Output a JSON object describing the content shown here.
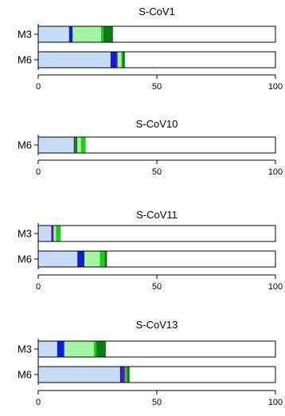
{
  "colors": {
    "light_blue": "#c6dbf6",
    "blue": "#0a1fd8",
    "purple": "#6a0f9c",
    "light_green": "#a3f5a3",
    "green": "#19d019",
    "dark_green": "#0e7a14"
  },
  "chart_data": [
    {
      "type": "bar",
      "orientation": "horizontal",
      "stacked": true,
      "title": "S-CoV1",
      "categories": [
        "M3",
        "M6"
      ],
      "xlim": [
        0,
        100
      ],
      "xticks": [
        "0",
        "50",
        "100"
      ],
      "segments": [
        [
          {
            "value": 13,
            "color": "light_blue"
          },
          {
            "value": 1.5,
            "color": "blue"
          },
          {
            "value": 12,
            "color": "light_green"
          },
          {
            "value": 1,
            "color": "green"
          },
          {
            "value": 4,
            "color": "dark_green"
          }
        ],
        [
          {
            "value": 30.5,
            "color": "light_blue"
          },
          {
            "value": 2.5,
            "color": "blue"
          },
          {
            "value": 0.5,
            "color": "purple"
          },
          {
            "value": 1.5,
            "color": "light_green"
          },
          {
            "value": 0.5,
            "color": "green"
          },
          {
            "value": 1,
            "color": "dark_green"
          }
        ]
      ]
    },
    {
      "type": "bar",
      "orientation": "horizontal",
      "stacked": true,
      "title": "S-CoV10",
      "categories": [
        "M6"
      ],
      "xlim": [
        0,
        100
      ],
      "xticks": [
        "0",
        "50",
        "100"
      ],
      "segments": [
        [
          {
            "value": 15,
            "color": "light_blue"
          },
          {
            "value": 0.5,
            "color": "purple"
          },
          {
            "value": 1,
            "color": "dark_green"
          },
          {
            "value": 1.5,
            "color": "light_green"
          },
          {
            "value": 2,
            "color": "green"
          }
        ]
      ]
    },
    {
      "type": "bar",
      "orientation": "horizontal",
      "stacked": true,
      "title": "S-CoV11",
      "categories": [
        "M3",
        "M6"
      ],
      "xlim": [
        0,
        100
      ],
      "xticks": [
        "0",
        "50",
        "100"
      ],
      "segments": [
        [
          {
            "value": 5.5,
            "color": "light_blue"
          },
          {
            "value": 1,
            "color": "purple"
          },
          {
            "value": 1,
            "color": "light_green"
          },
          {
            "value": 2,
            "color": "green"
          }
        ],
        [
          {
            "value": 16.5,
            "color": "light_blue"
          },
          {
            "value": 3,
            "color": "blue"
          },
          {
            "value": 6.5,
            "color": "light_green"
          },
          {
            "value": 2,
            "color": "green"
          },
          {
            "value": 1,
            "color": "dark_green"
          }
        ]
      ]
    },
    {
      "type": "bar",
      "orientation": "horizontal",
      "stacked": true,
      "title": "S-CoV13",
      "categories": [
        "M3",
        "M6"
      ],
      "xlim": [
        0,
        100
      ],
      "xticks": [
        "0",
        "50",
        "100"
      ],
      "segments": [
        [
          {
            "value": 8,
            "color": "light_blue"
          },
          {
            "value": 3,
            "color": "blue"
          },
          {
            "value": 12.5,
            "color": "light_green"
          },
          {
            "value": 1,
            "color": "green"
          },
          {
            "value": 4,
            "color": "dark_green"
          }
        ],
        [
          {
            "value": 34.5,
            "color": "light_blue"
          },
          {
            "value": 1,
            "color": "blue"
          },
          {
            "value": 1,
            "color": "purple"
          },
          {
            "value": 1,
            "color": "green"
          },
          {
            "value": 1,
            "color": "dark_green"
          }
        ]
      ]
    }
  ]
}
